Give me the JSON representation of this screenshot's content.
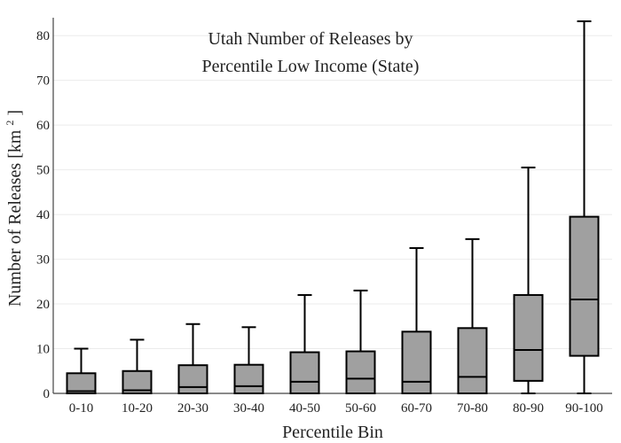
{
  "chart_data": {
    "type": "box",
    "title_line1": "Utah Number of Releases by",
    "title_line2": "Percentile Low Income (State)",
    "xlabel": "Percentile Bin",
    "ylabel_main": "Number of Releases  [km",
    "ylabel_sup": "2",
    "ylabel_close": "]",
    "ylim": [
      0,
      84
    ],
    "yticks": [
      0,
      10,
      20,
      30,
      40,
      50,
      60,
      70,
      80
    ],
    "grid": true,
    "colors": {
      "box_fill": "#a0a0a0",
      "stroke": "#000000",
      "grid": "#ebebeb",
      "axis": "#444444",
      "text": "#222222"
    },
    "categories": [
      "0-10",
      "10-20",
      "20-30",
      "30-40",
      "40-50",
      "50-60",
      "60-70",
      "70-80",
      "80-90",
      "90-100"
    ],
    "boxes": [
      {
        "min": 0,
        "q1": 0,
        "median": 0.5,
        "q3": 4.5,
        "max": 10
      },
      {
        "min": 0,
        "q1": 0,
        "median": 0.7,
        "q3": 5,
        "max": 12
      },
      {
        "min": 0,
        "q1": 0,
        "median": 1.4,
        "q3": 6.3,
        "max": 15.5
      },
      {
        "min": 0,
        "q1": 0,
        "median": 1.6,
        "q3": 6.4,
        "max": 14.8
      },
      {
        "min": 0,
        "q1": 0,
        "median": 2.6,
        "q3": 9.2,
        "max": 22
      },
      {
        "min": 0,
        "q1": 0,
        "median": 3.3,
        "q3": 9.4,
        "max": 23
      },
      {
        "min": 0,
        "q1": 0,
        "median": 2.6,
        "q3": 13.8,
        "max": 32.5
      },
      {
        "min": 0,
        "q1": 0,
        "median": 3.7,
        "q3": 14.6,
        "max": 34.5
      },
      {
        "min": 0,
        "q1": 2.8,
        "median": 9.7,
        "q3": 22,
        "max": 50.5
      },
      {
        "min": 0,
        "q1": 8.4,
        "median": 21,
        "q3": 39.5,
        "max": 83.2
      }
    ]
  }
}
